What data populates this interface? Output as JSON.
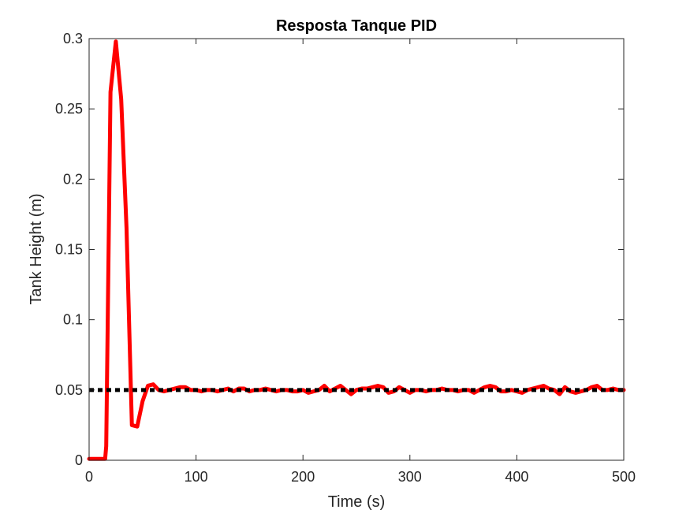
{
  "chart_data": {
    "type": "line",
    "title": "Resposta Tanque PID",
    "xlabel": "Time (s)",
    "ylabel": "Tank Height (m)",
    "xlim": [
      0,
      500
    ],
    "ylim": [
      0,
      0.3
    ],
    "xticks": [
      0,
      100,
      200,
      300,
      400,
      500
    ],
    "xtick_labels": [
      "0",
      "100",
      "200",
      "300",
      "400",
      "500"
    ],
    "yticks": [
      0,
      0.05,
      0.1,
      0.15,
      0.2,
      0.25,
      0.3
    ],
    "ytick_labels": [
      "0",
      "0.05",
      "0.1",
      "0.15",
      "0.2",
      "0.25",
      "0.3"
    ],
    "grid": false,
    "series": [
      {
        "style": "solid",
        "color": "#ff0000",
        "x": [
          0,
          5,
          10,
          15,
          16,
          20,
          25,
          30,
          35,
          40,
          45,
          50,
          55,
          60,
          65,
          70,
          75,
          80,
          85,
          90,
          95,
          100,
          105,
          110,
          115,
          120,
          125,
          130,
          135,
          140,
          145,
          150,
          155,
          160,
          165,
          170,
          175,
          180,
          185,
          190,
          195,
          200,
          205,
          210,
          215,
          220,
          225,
          230,
          235,
          240,
          245,
          250,
          255,
          260,
          265,
          270,
          275,
          280,
          285,
          290,
          295,
          300,
          305,
          310,
          315,
          320,
          325,
          330,
          335,
          340,
          345,
          350,
          355,
          360,
          365,
          370,
          375,
          380,
          385,
          390,
          395,
          400,
          405,
          410,
          415,
          420,
          425,
          430,
          435,
          440,
          445,
          450,
          455,
          460,
          465,
          470,
          475,
          480,
          485,
          490,
          495,
          500
        ],
        "y": [
          0.001,
          0.001,
          0.001,
          0.001,
          0.01,
          0.262,
          0.298,
          0.257,
          0.165,
          0.025,
          0.024,
          0.042,
          0.053,
          0.054,
          0.05,
          0.049,
          0.05,
          0.051,
          0.052,
          0.052,
          0.05,
          0.05,
          0.049,
          0.05,
          0.05,
          0.049,
          0.05,
          0.051,
          0.049,
          0.051,
          0.051,
          0.049,
          0.05,
          0.05,
          0.051,
          0.05,
          0.049,
          0.05,
          0.05,
          0.049,
          0.049,
          0.05,
          0.048,
          0.049,
          0.05,
          0.053,
          0.049,
          0.051,
          0.053,
          0.05,
          0.047,
          0.05,
          0.051,
          0.051,
          0.052,
          0.053,
          0.052,
          0.048,
          0.049,
          0.052,
          0.05,
          0.048,
          0.05,
          0.05,
          0.049,
          0.05,
          0.05,
          0.051,
          0.05,
          0.05,
          0.049,
          0.05,
          0.05,
          0.048,
          0.05,
          0.052,
          0.053,
          0.052,
          0.049,
          0.049,
          0.05,
          0.049,
          0.048,
          0.05,
          0.051,
          0.052,
          0.053,
          0.051,
          0.05,
          0.047,
          0.052,
          0.049,
          0.048,
          0.049,
          0.05,
          0.052,
          0.053,
          0.05,
          0.05,
          0.051,
          0.05,
          0.05
        ]
      },
      {
        "style": "dotted",
        "color": "#000000",
        "x": [
          0,
          500
        ],
        "y": [
          0.05,
          0.05
        ]
      }
    ]
  }
}
